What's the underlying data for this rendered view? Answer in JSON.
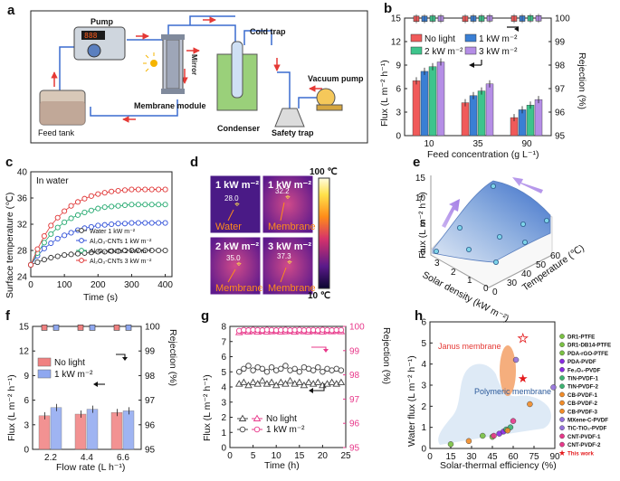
{
  "panel_letters": [
    "a",
    "b",
    "c",
    "d",
    "e",
    "f",
    "g",
    "h"
  ],
  "schematic": {
    "pump": "Pump",
    "pump_display": "888",
    "feed_tank": "Feed tank",
    "membrane_module": "Membrane module",
    "mirror": "Mirror",
    "cold_trap": "Cold trap",
    "condenser": "Condenser",
    "safety_trap": "Safety trap",
    "vacuum_pump": "Vacuum pump"
  },
  "thermal": {
    "tiles": [
      {
        "title": "1 kW m⁻²",
        "value": "28.0",
        "label": "Water"
      },
      {
        "title": "1 kW m⁻²",
        "value": "32.2",
        "label": "Membrane"
      },
      {
        "title": "2 kW m⁻²",
        "value": "35.0",
        "label": "Membrane"
      },
      {
        "title": "3 kW m⁻²",
        "value": "37.3",
        "label": "Membrane"
      }
    ],
    "scale_max": "100 ℃",
    "scale_min": "10 ℃"
  },
  "chart_data": [
    {
      "panel": "b",
      "type": "bar",
      "xlabel": "Feed concentration (g L⁻¹)",
      "ylabel": "Flux (L m⁻² h⁻¹)",
      "y2label": "Rejection (%)",
      "categories": [
        "10",
        "35",
        "90"
      ],
      "ylim": [
        0,
        15
      ],
      "y2lim": [
        95,
        100
      ],
      "yticks": [
        0,
        3,
        6,
        9,
        12,
        15
      ],
      "y2ticks": [
        95,
        96,
        97,
        98,
        99,
        100
      ],
      "colors": [
        "#f05a5a",
        "#3a7fd4",
        "#3ec48c",
        "#b58ee6"
      ],
      "series": [
        {
          "name": "No light",
          "values": [
            7.0,
            4.2,
            2.3
          ],
          "rejection": [
            99.97,
            99.97,
            99.98
          ]
        },
        {
          "name": "1 kW m⁻²",
          "values": [
            8.2,
            5.1,
            3.3
          ],
          "rejection": [
            99.97,
            99.98,
            99.98
          ]
        },
        {
          "name": "2 kW m⁻²",
          "values": [
            8.8,
            5.7,
            3.9
          ],
          "rejection": [
            99.98,
            99.98,
            99.99
          ]
        },
        {
          "name": "3 kW m⁻²",
          "values": [
            9.4,
            6.6,
            4.6
          ],
          "rejection": [
            99.98,
            99.99,
            99.99
          ]
        }
      ]
    },
    {
      "panel": "c",
      "type": "line",
      "xlabel": "Time (s)",
      "ylabel": "Surface temperature (℃)",
      "xlim": [
        0,
        420
      ],
      "ylim": [
        24,
        40
      ],
      "xticks": [
        0,
        100,
        200,
        300,
        400
      ],
      "yticks": [
        24,
        28,
        32,
        36,
        40
      ],
      "annotation": "In water",
      "x": [
        0,
        20,
        40,
        60,
        80,
        100,
        120,
        140,
        160,
        180,
        200,
        220,
        240,
        260,
        280,
        300,
        320,
        340,
        360,
        380,
        400
      ],
      "series": [
        {
          "name": "Water 1 kW m⁻²",
          "color": "#333333",
          "values": [
            25.8,
            26.2,
            26.6,
            26.9,
            27.1,
            27.3,
            27.4,
            27.5,
            27.6,
            27.7,
            27.8,
            27.8,
            27.9,
            27.9,
            28.0,
            28.0,
            28.0,
            28.0,
            28.0,
            28.0,
            28.0
          ]
        },
        {
          "name": "Al₂O₃-CNTs 1 kW m⁻²",
          "color": "#2f4fd8",
          "values": [
            25.8,
            27.2,
            28.3,
            29.1,
            29.8,
            30.3,
            30.7,
            31.1,
            31.4,
            31.6,
            31.8,
            31.9,
            32.0,
            32.1,
            32.1,
            32.2,
            32.2,
            32.2,
            32.2,
            32.2,
            32.2
          ]
        },
        {
          "name": "Al₂O₃-CNTs 2 kW m⁻²",
          "color": "#22a86e",
          "values": [
            25.8,
            27.6,
            29.2,
            30.5,
            31.5,
            32.3,
            32.9,
            33.4,
            33.8,
            34.1,
            34.4,
            34.6,
            34.7,
            34.8,
            34.9,
            35.0,
            35.0,
            35.0,
            35.0,
            35.0,
            35.0
          ]
        },
        {
          "name": "Al₂O₃-CNTs 3 kW m⁻²",
          "color": "#e03434",
          "values": [
            25.8,
            28.2,
            30.2,
            31.8,
            33.0,
            34.0,
            34.8,
            35.4,
            35.9,
            36.3,
            36.6,
            36.8,
            37.0,
            37.1,
            37.2,
            37.3,
            37.3,
            37.3,
            37.3,
            37.3,
            37.3
          ]
        }
      ]
    },
    {
      "panel": "e",
      "type": "surface",
      "xlabel": "Solar density (kW m⁻²)",
      "ylabel": "Temperature (℃)",
      "zlabel": "Flux (L m⁻² h⁻¹)",
      "xticks": [
        0,
        1,
        2,
        3
      ],
      "yticks": [
        0,
        30,
        40,
        50,
        60
      ],
      "zticks": [
        0,
        5,
        10,
        15
      ]
    },
    {
      "panel": "f",
      "type": "bar",
      "xlabel": "Flow rate (L h⁻¹)",
      "ylabel": "Flux (L m⁻² h⁻¹)",
      "y2label": "Rejection (%)",
      "categories": [
        "2.2",
        "4.4",
        "6.6"
      ],
      "ylim": [
        0,
        15
      ],
      "y2lim": [
        95,
        100
      ],
      "yticks": [
        0,
        3,
        6,
        9,
        12,
        15
      ],
      "y2ticks": [
        95,
        96,
        97,
        98,
        99,
        100
      ],
      "series": [
        {
          "name": "No light",
          "color": "#f08080",
          "values": [
            4.1,
            4.3,
            4.5
          ],
          "rejection": [
            99.95,
            99.95,
            99.95
          ]
        },
        {
          "name": "1 kW m⁻²",
          "color": "#8fa8f0",
          "values": [
            5.1,
            4.9,
            4.7
          ],
          "rejection": [
            99.95,
            99.95,
            99.95
          ]
        }
      ]
    },
    {
      "panel": "g",
      "type": "line",
      "xlabel": "Time (h)",
      "ylabel": "Flux (L m⁻² h⁻¹)",
      "y2label": "Rejection (%)",
      "xlim": [
        0,
        25
      ],
      "ylim": [
        0,
        8
      ],
      "y2lim": [
        95,
        100
      ],
      "xticks": [
        0,
        5,
        10,
        15,
        20,
        25
      ],
      "yticks": [
        0,
        1,
        2,
        3,
        4,
        5,
        6,
        7,
        8
      ],
      "y2ticks": [
        95,
        96,
        97,
        98,
        99,
        100
      ],
      "x": [
        2,
        3,
        4,
        5,
        6,
        7,
        8,
        9,
        10,
        11,
        12,
        13,
        14,
        15,
        16,
        17,
        18,
        19,
        20,
        21,
        22,
        23,
        24
      ],
      "series": [
        {
          "name": "No light",
          "color": "#444444",
          "marker": "triangle",
          "values": [
            4.2,
            4.3,
            4.1,
            4.3,
            4.2,
            4.4,
            4.2,
            4.3,
            4.1,
            4.3,
            4.2,
            4.4,
            4.2,
            4.3,
            4.1,
            4.3,
            4.2,
            4.3,
            4.1,
            4.2,
            4.3,
            4.2,
            4.3
          ]
        },
        {
          "name": "1 kW m⁻²",
          "color": "#444444",
          "marker": "circle",
          "values": [
            5.0,
            5.2,
            5.4,
            5.1,
            5.3,
            5.2,
            5.0,
            5.3,
            5.1,
            5.2,
            5.4,
            5.1,
            5.2,
            5.0,
            5.3,
            5.2,
            5.1,
            5.3,
            5.0,
            5.2,
            5.1,
            5.2,
            5.1
          ]
        },
        {
          "name": "No light rejection",
          "color": "#e8388a",
          "marker": "triangle",
          "axis": "right",
          "values": [
            99.75,
            99.8,
            99.78,
            99.8,
            99.77,
            99.8,
            99.78,
            99.79,
            99.8,
            99.78,
            99.79,
            99.8,
            99.77,
            99.8,
            99.79,
            99.78,
            99.8,
            99.79,
            99.78,
            99.8,
            99.79,
            99.8,
            99.79
          ]
        },
        {
          "name": "1 kW m⁻² rejection",
          "color": "#e8388a",
          "marker": "circle",
          "axis": "right",
          "values": [
            99.82,
            99.85,
            99.84,
            99.86,
            99.85,
            99.84,
            99.86,
            99.85,
            99.84,
            99.85,
            99.86,
            99.84,
            99.85,
            99.86,
            99.84,
            99.85,
            99.85,
            99.84,
            99.86,
            99.85,
            99.84,
            99.85,
            99.85
          ]
        }
      ]
    },
    {
      "panel": "h",
      "type": "scatter",
      "xlabel": "Solar-thermal efficiency (%)",
      "ylabel": "Water flux (L m⁻² h⁻¹)",
      "xlim": [
        0,
        90
      ],
      "ylim": [
        0,
        6
      ],
      "xticks": [
        0,
        15,
        30,
        45,
        60,
        75,
        90
      ],
      "yticks": [
        0,
        1,
        2,
        3,
        4,
        5,
        6
      ],
      "annotations": [
        "Janus membrane",
        "Polymeric membrane"
      ],
      "points": [
        {
          "name": "DR1-PTFE",
          "color": "#7ac142",
          "x": 15,
          "y": 0.2
        },
        {
          "name": "DR1-DB14-PTFE",
          "color": "#7ac142",
          "x": 38,
          "y": 0.6
        },
        {
          "name": "PDA-rGO-PTFE",
          "color": "#7ac142",
          "x": 45,
          "y": 0.55
        },
        {
          "name": "PDA-PVDF",
          "color": "#8a2be2",
          "x": 50,
          "y": 0.7
        },
        {
          "name": "Fe₃O₄-PVDF",
          "color": "#8a2be2",
          "x": 53,
          "y": 0.8
        },
        {
          "name": "TiN-PVDF-1",
          "color": "#3cb371",
          "x": 55,
          "y": 0.9
        },
        {
          "name": "TiN-PVDF-2",
          "color": "#3cb371",
          "x": 58,
          "y": 1.0
        },
        {
          "name": "CB-PVDF-1",
          "color": "#f28c28",
          "x": 28,
          "y": 0.35
        },
        {
          "name": "CB-PVDF-2",
          "color": "#f28c28",
          "x": 56,
          "y": 0.85
        },
        {
          "name": "CB-PVDF-3",
          "color": "#f28c28",
          "x": 72,
          "y": 2.1
        },
        {
          "name": "MXene-C-PVDF",
          "color": "#9370db",
          "x": 89,
          "y": 2.9
        },
        {
          "name": "TiC-TiO₂-PVDF",
          "color": "#9370db",
          "x": 62,
          "y": 4.2
        },
        {
          "name": "CNT-PVDF-1",
          "color": "#e8388a",
          "x": 46,
          "y": 0.6
        },
        {
          "name": "CNT-PVDF-2",
          "color": "#e8388a",
          "x": 60,
          "y": 1.3
        },
        {
          "name": "This work",
          "color": "#e41a1c",
          "x": 67,
          "y": 3.3
        }
      ],
      "highlight": {
        "x": 67,
        "y": 5.2
      }
    }
  ]
}
